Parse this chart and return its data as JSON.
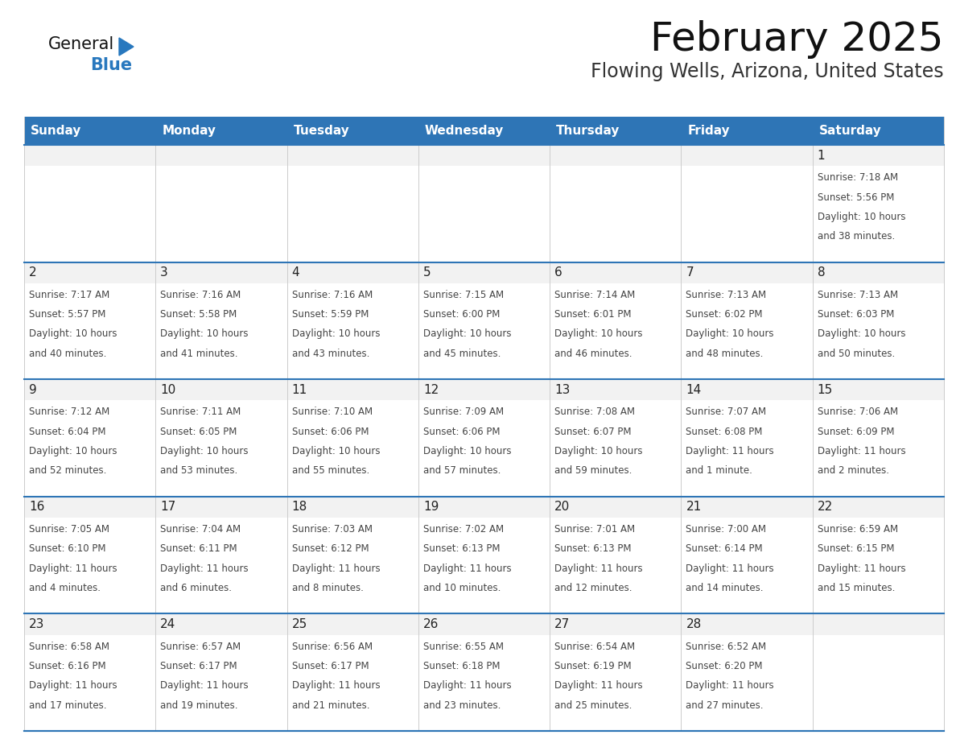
{
  "title": "February 2025",
  "subtitle": "Flowing Wells, Arizona, United States",
  "header_color": "#2E75B6",
  "header_text_color": "#FFFFFF",
  "day_names": [
    "Sunday",
    "Monday",
    "Tuesday",
    "Wednesday",
    "Thursday",
    "Friday",
    "Saturday"
  ],
  "cell_bg_white": "#FFFFFF",
  "cell_bg_gray": "#F2F2F2",
  "cell_border_color": "#CCCCCC",
  "row_border_color": "#2E75B6",
  "day_num_color": "#222222",
  "text_color": "#444444",
  "logo_general_color": "#111111",
  "logo_blue_color": "#2878BE",
  "calendar": [
    [
      null,
      null,
      null,
      null,
      null,
      null,
      {
        "day": 1,
        "sunrise": "7:18 AM",
        "sunset": "5:56 PM",
        "daylight": "10 hours",
        "daylight2": "and 38 minutes."
      }
    ],
    [
      {
        "day": 2,
        "sunrise": "7:17 AM",
        "sunset": "5:57 PM",
        "daylight": "10 hours",
        "daylight2": "and 40 minutes."
      },
      {
        "day": 3,
        "sunrise": "7:16 AM",
        "sunset": "5:58 PM",
        "daylight": "10 hours",
        "daylight2": "and 41 minutes."
      },
      {
        "day": 4,
        "sunrise": "7:16 AM",
        "sunset": "5:59 PM",
        "daylight": "10 hours",
        "daylight2": "and 43 minutes."
      },
      {
        "day": 5,
        "sunrise": "7:15 AM",
        "sunset": "6:00 PM",
        "daylight": "10 hours",
        "daylight2": "and 45 minutes."
      },
      {
        "day": 6,
        "sunrise": "7:14 AM",
        "sunset": "6:01 PM",
        "daylight": "10 hours",
        "daylight2": "and 46 minutes."
      },
      {
        "day": 7,
        "sunrise": "7:13 AM",
        "sunset": "6:02 PM",
        "daylight": "10 hours",
        "daylight2": "and 48 minutes."
      },
      {
        "day": 8,
        "sunrise": "7:13 AM",
        "sunset": "6:03 PM",
        "daylight": "10 hours",
        "daylight2": "and 50 minutes."
      }
    ],
    [
      {
        "day": 9,
        "sunrise": "7:12 AM",
        "sunset": "6:04 PM",
        "daylight": "10 hours",
        "daylight2": "and 52 minutes."
      },
      {
        "day": 10,
        "sunrise": "7:11 AM",
        "sunset": "6:05 PM",
        "daylight": "10 hours",
        "daylight2": "and 53 minutes."
      },
      {
        "day": 11,
        "sunrise": "7:10 AM",
        "sunset": "6:06 PM",
        "daylight": "10 hours",
        "daylight2": "and 55 minutes."
      },
      {
        "day": 12,
        "sunrise": "7:09 AM",
        "sunset": "6:06 PM",
        "daylight": "10 hours",
        "daylight2": "and 57 minutes."
      },
      {
        "day": 13,
        "sunrise": "7:08 AM",
        "sunset": "6:07 PM",
        "daylight": "10 hours",
        "daylight2": "and 59 minutes."
      },
      {
        "day": 14,
        "sunrise": "7:07 AM",
        "sunset": "6:08 PM",
        "daylight": "11 hours",
        "daylight2": "and 1 minute."
      },
      {
        "day": 15,
        "sunrise": "7:06 AM",
        "sunset": "6:09 PM",
        "daylight": "11 hours",
        "daylight2": "and 2 minutes."
      }
    ],
    [
      {
        "day": 16,
        "sunrise": "7:05 AM",
        "sunset": "6:10 PM",
        "daylight": "11 hours",
        "daylight2": "and 4 minutes."
      },
      {
        "day": 17,
        "sunrise": "7:04 AM",
        "sunset": "6:11 PM",
        "daylight": "11 hours",
        "daylight2": "and 6 minutes."
      },
      {
        "day": 18,
        "sunrise": "7:03 AM",
        "sunset": "6:12 PM",
        "daylight": "11 hours",
        "daylight2": "and 8 minutes."
      },
      {
        "day": 19,
        "sunrise": "7:02 AM",
        "sunset": "6:13 PM",
        "daylight": "11 hours",
        "daylight2": "and 10 minutes."
      },
      {
        "day": 20,
        "sunrise": "7:01 AM",
        "sunset": "6:13 PM",
        "daylight": "11 hours",
        "daylight2": "and 12 minutes."
      },
      {
        "day": 21,
        "sunrise": "7:00 AM",
        "sunset": "6:14 PM",
        "daylight": "11 hours",
        "daylight2": "and 14 minutes."
      },
      {
        "day": 22,
        "sunrise": "6:59 AM",
        "sunset": "6:15 PM",
        "daylight": "11 hours",
        "daylight2": "and 15 minutes."
      }
    ],
    [
      {
        "day": 23,
        "sunrise": "6:58 AM",
        "sunset": "6:16 PM",
        "daylight": "11 hours",
        "daylight2": "and 17 minutes."
      },
      {
        "day": 24,
        "sunrise": "6:57 AM",
        "sunset": "6:17 PM",
        "daylight": "11 hours",
        "daylight2": "and 19 minutes."
      },
      {
        "day": 25,
        "sunrise": "6:56 AM",
        "sunset": "6:17 PM",
        "daylight": "11 hours",
        "daylight2": "and 21 minutes."
      },
      {
        "day": 26,
        "sunrise": "6:55 AM",
        "sunset": "6:18 PM",
        "daylight": "11 hours",
        "daylight2": "and 23 minutes."
      },
      {
        "day": 27,
        "sunrise": "6:54 AM",
        "sunset": "6:19 PM",
        "daylight": "11 hours",
        "daylight2": "and 25 minutes."
      },
      {
        "day": 28,
        "sunrise": "6:52 AM",
        "sunset": "6:20 PM",
        "daylight": "11 hours",
        "daylight2": "and 27 minutes."
      },
      null
    ]
  ]
}
